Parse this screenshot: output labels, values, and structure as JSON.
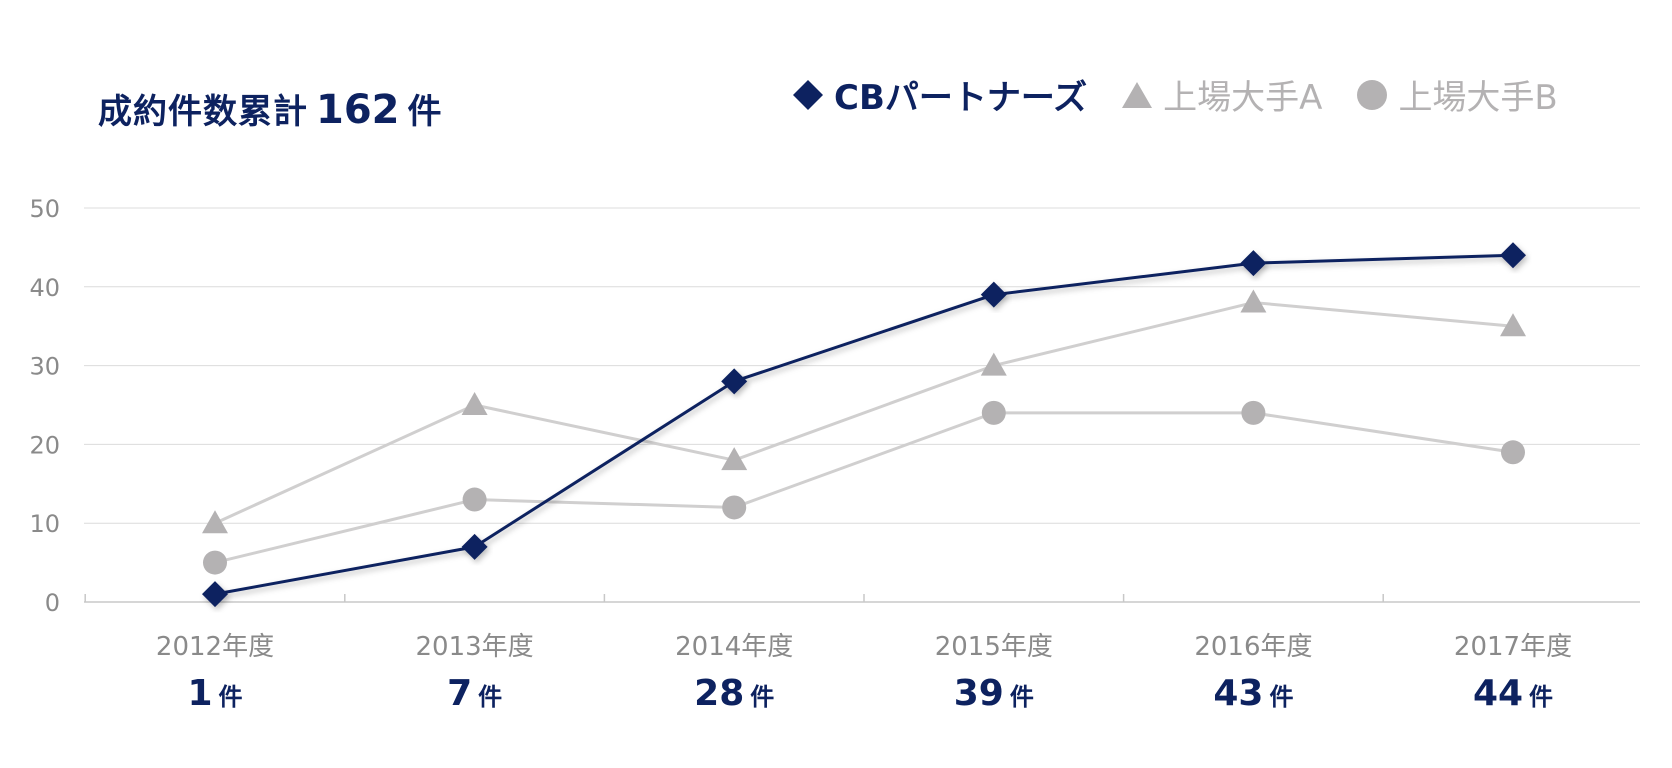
{
  "title": {
    "label": "成約件数累計",
    "total": "162",
    "unit": "件"
  },
  "legend": [
    {
      "name": "CBパートナーズ",
      "marker": "diamond",
      "color": "#0d2260"
    },
    {
      "name": "上場大手A",
      "marker": "triangle",
      "color": "#b4b2b3"
    },
    {
      "name": "上場大手B",
      "marker": "circle",
      "color": "#b4b2b3"
    }
  ],
  "chart_data": {
    "type": "line",
    "categories": [
      "2012年度",
      "2013年度",
      "2014年度",
      "2015年度",
      "2016年度",
      "2017年度"
    ],
    "count_labels": [
      "1",
      "7",
      "28",
      "39",
      "43",
      "44"
    ],
    "count_unit": "件",
    "series": [
      {
        "name": "CBパートナーズ",
        "marker": "diamond",
        "color": "#0d2260",
        "values": [
          1,
          7,
          28,
          39,
          43,
          44
        ]
      },
      {
        "name": "上場大手A",
        "marker": "triangle",
        "color": "#b4b2b3",
        "line_color": "#d0cfcf",
        "values": [
          10,
          25,
          18,
          30,
          38,
          35
        ]
      },
      {
        "name": "上場大手B",
        "marker": "circle",
        "color": "#b4b2b3",
        "line_color": "#d0cfcf",
        "values": [
          5,
          13,
          12,
          24,
          24,
          19
        ]
      }
    ],
    "y_ticks": [
      "0",
      "10",
      "20",
      "30",
      "40",
      "50"
    ],
    "ylim": [
      0,
      50
    ],
    "grid": true,
    "legend_position": "top-right"
  }
}
